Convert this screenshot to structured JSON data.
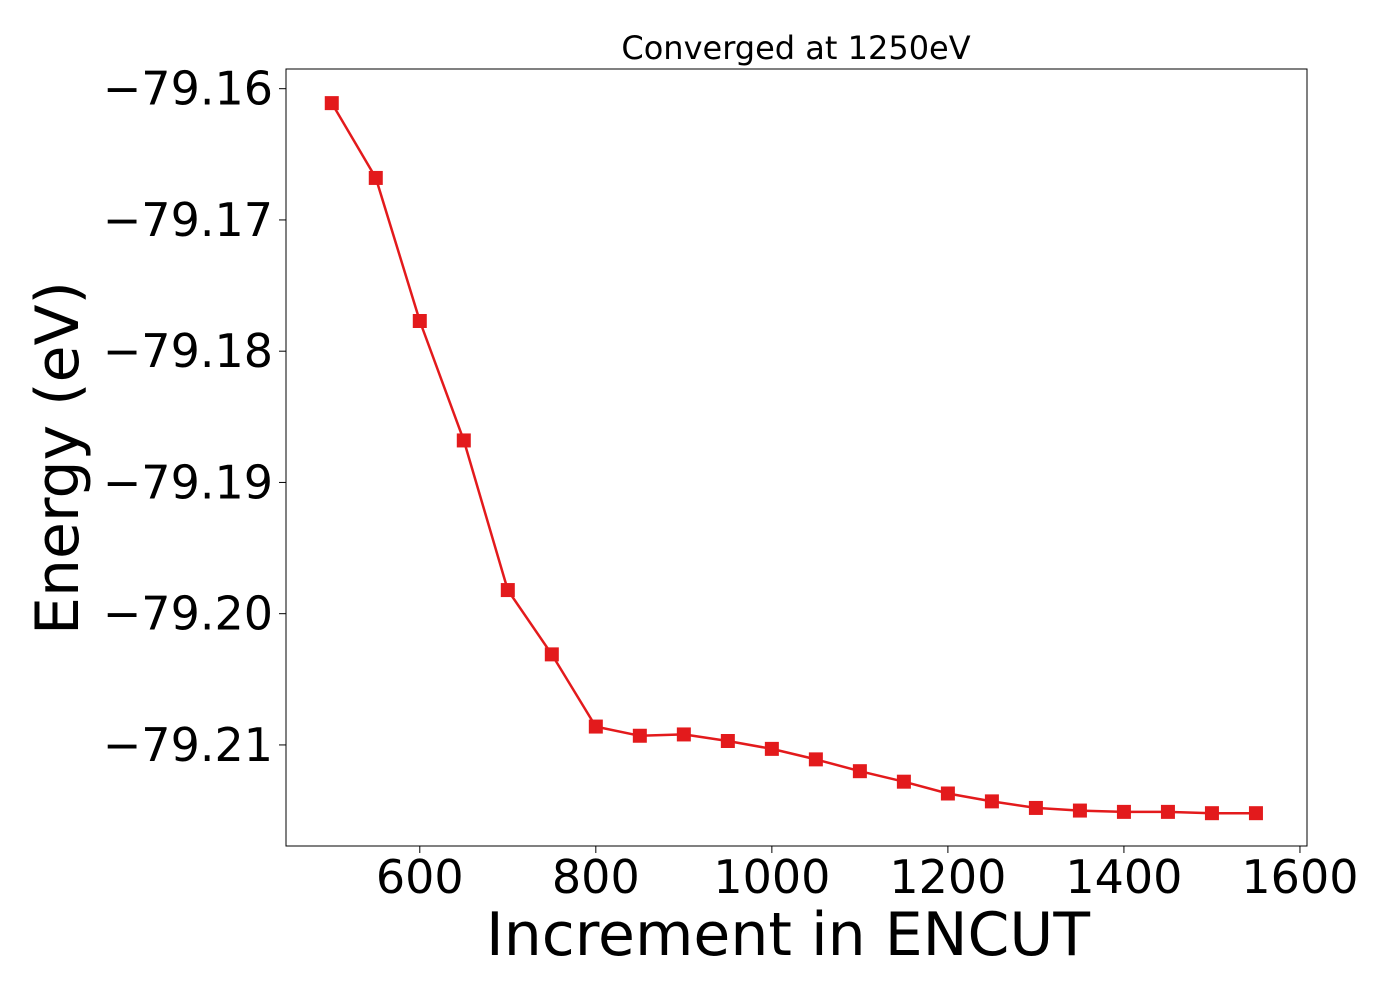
{
  "chart_data": {
    "type": "line",
    "title": "Converged at 1250eV",
    "xlabel": "Increment in ENCUT",
    "ylabel": "Energy (eV)",
    "xlim": [
      448,
      1608
    ],
    "ylim": [
      -79.2177,
      -79.1585
    ],
    "xticks": [
      600,
      800,
      1000,
      1200,
      1400,
      1600
    ],
    "xtick_labels": [
      "600",
      "800",
      "1000",
      "1200",
      "1400",
      "1600"
    ],
    "yticks": [
      -79.16,
      -79.17,
      -79.18,
      -79.19,
      -79.2,
      -79.21
    ],
    "ytick_labels": [
      "−79.16",
      "−79.17",
      "−79.18",
      "−79.19",
      "−79.20",
      "−79.21"
    ],
    "grid": false,
    "marker": "square",
    "color": "#e31a1c",
    "series": [
      {
        "x": [
          500,
          550,
          600,
          650,
          700,
          750,
          800,
          850,
          900,
          950,
          1000,
          1050,
          1100,
          1150,
          1200,
          1250,
          1300,
          1350,
          1400,
          1450,
          1500,
          1550
        ],
        "values": [
          -79.1611,
          -79.1668,
          -79.1777,
          -79.1868,
          -79.1982,
          -79.2031,
          -79.2086,
          -79.2093,
          -79.2092,
          -79.2097,
          -79.2103,
          -79.2111,
          -79.212,
          -79.2128,
          -79.2137,
          -79.2143,
          -79.2148,
          -79.215,
          -79.2151,
          -79.2151,
          -79.2152,
          -79.2152
        ]
      }
    ]
  }
}
